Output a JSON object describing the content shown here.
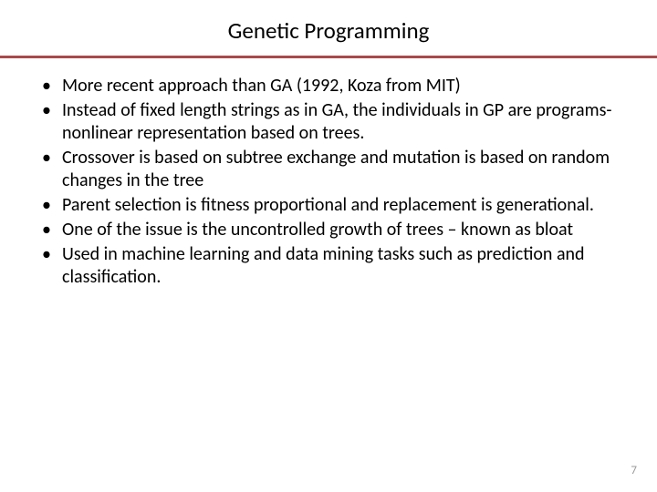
{
  "title": "Genetic Programming",
  "rule_color": "#a94a4a",
  "title_color": "#000000",
  "title_fontsize": 25,
  "body_fontsize": 20,
  "body_color": "#000000",
  "background_color": "#ffffff",
  "page_number": "7",
  "page_number_color": "#9a9a9a",
  "bullets": [
    "More recent approach than GA (1992, Koza from MIT)",
    "Instead of fixed length strings as in GA, the individuals in GP are programs- nonlinear representation based on trees.",
    "Crossover is based on subtree exchange and mutation is based on random changes in the tree",
    "Parent selection is fitness proportional and replacement is generational.",
    "One of the issue is the uncontrolled growth of trees – known as bloat",
    "Used in machine learning and data mining tasks such as prediction and classification."
  ]
}
